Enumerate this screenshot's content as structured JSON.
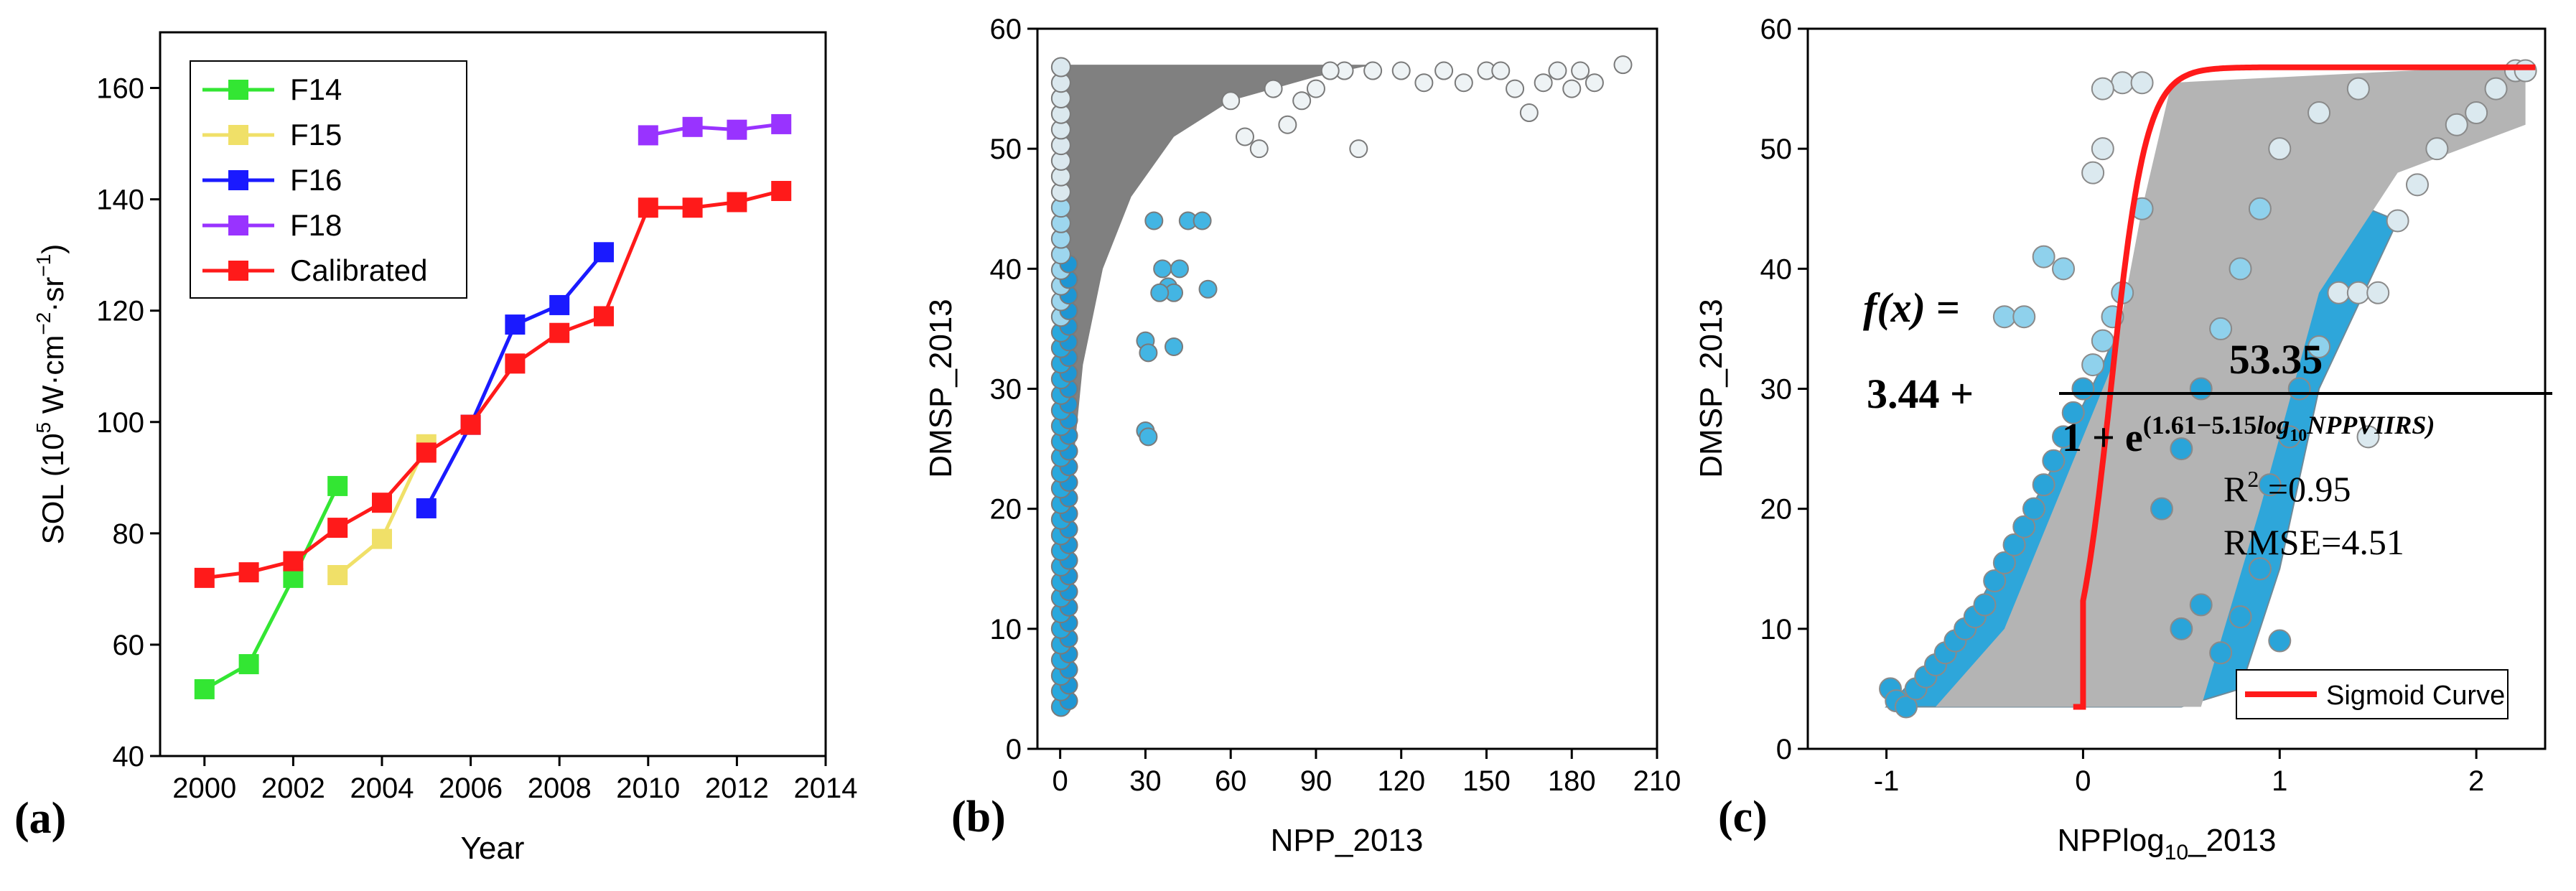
{
  "chart_data": [
    {
      "type": "line",
      "panel_label": "(a)",
      "xlabel": "Year",
      "ylabel_main": "SOL (10",
      "ylabel_sup1": "5",
      "ylabel_mid": " W·cm",
      "ylabel_sup2": "−2",
      "ylabel_mid2": "·sr",
      "ylabel_sup3": "−1",
      "ylabel_end": ")",
      "xlim": [
        1999,
        2014
      ],
      "ylim": [
        40,
        170
      ],
      "xticks": [
        2000,
        2002,
        2004,
        2006,
        2008,
        2010,
        2012,
        2014
      ],
      "yticks": [
        40,
        60,
        80,
        100,
        120,
        140,
        160
      ],
      "legend_position": "top-left",
      "series": [
        {
          "name": "F14",
          "color": "#33e633",
          "x": [
            2000,
            2001,
            2002,
            2003
          ],
          "y": [
            52,
            56.5,
            72,
            88.5
          ]
        },
        {
          "name": "F15",
          "color": "#f0e068",
          "x": [
            2003,
            2004,
            2005
          ],
          "y": [
            72.5,
            79,
            96
          ]
        },
        {
          "name": "F16",
          "color": "#1a1aff",
          "x": [
            2005,
            2006,
            2007,
            2008,
            2009
          ],
          "y": [
            84.5,
            99.5,
            117.5,
            121,
            130.5
          ]
        },
        {
          "name": "F18",
          "color": "#9933ff",
          "x": [
            2010,
            2011,
            2012,
            2013
          ],
          "y": [
            151.5,
            153,
            152.5,
            153.5
          ]
        },
        {
          "name": "Calibrated",
          "color": "#ff1a1a",
          "x": [
            2000,
            2001,
            2002,
            2003,
            2004,
            2005,
            2006,
            2007,
            2008,
            2009,
            2010,
            2011,
            2012,
            2013
          ],
          "y": [
            72,
            73,
            75,
            81,
            85.5,
            94.5,
            99.5,
            110.5,
            116,
            119,
            138.5,
            138.5,
            139.5,
            141.5
          ]
        }
      ]
    },
    {
      "type": "scatter",
      "panel_label": "(b)",
      "xlabel": "NPP_2013",
      "ylabel": "DMSP_2013",
      "xlim": [
        -8,
        210
      ],
      "ylim": [
        0,
        60
      ],
      "xticks": [
        0,
        30,
        60,
        90,
        120,
        150,
        180,
        210
      ],
      "yticks": [
        0,
        10,
        20,
        30,
        40,
        50,
        60
      ],
      "point_color_low": "#1e90d0",
      "point_color_high": "#dce9ef",
      "point_edge": "#808080",
      "sample_points": [
        [
          105,
          50
        ],
        [
          120,
          56.5
        ],
        [
          135,
          56.5
        ],
        [
          150,
          56.5
        ],
        [
          160,
          55
        ],
        [
          165,
          53
        ],
        [
          170,
          55.5
        ],
        [
          175,
          56.5
        ],
        [
          180,
          55
        ],
        [
          183,
          56.5
        ],
        [
          188,
          55.5
        ],
        [
          198,
          57
        ],
        [
          100,
          56.5
        ],
        [
          110,
          56.5
        ],
        [
          128,
          55.5
        ],
        [
          142,
          55.5
        ],
        [
          155,
          56.5
        ],
        [
          60,
          54
        ],
        [
          65,
          51
        ],
        [
          70,
          50
        ],
        [
          75,
          55
        ],
        [
          80,
          52
        ],
        [
          85,
          54
        ],
        [
          90,
          55
        ],
        [
          95,
          56.5
        ],
        [
          30,
          34
        ],
        [
          31,
          33
        ],
        [
          38,
          38.5
        ],
        [
          40,
          38
        ],
        [
          52,
          38.3
        ],
        [
          33,
          44
        ],
        [
          30,
          26.5
        ],
        [
          31,
          26
        ],
        [
          35,
          38
        ],
        [
          45,
          44
        ],
        [
          50,
          44
        ],
        [
          36,
          40
        ],
        [
          42,
          40
        ],
        [
          40,
          33.5
        ]
      ]
    },
    {
      "type": "scatter",
      "panel_label": "(c)",
      "xlabel_main": "NPPlog",
      "xlabel_sub": "10",
      "xlabel_end": "_2013",
      "ylabel": "DMSP_2013",
      "xlim": [
        -1.4,
        2.35
      ],
      "ylim": [
        0,
        60
      ],
      "xticks": [
        -1,
        0,
        1,
        2
      ],
      "yticks": [
        0,
        10,
        20,
        30,
        40,
        50,
        60
      ],
      "sigmoid": {
        "name": "Sigmoid Curve",
        "a": 3.44,
        "b": 53.35,
        "c": 1.61,
        "d": 5.15,
        "color": "#ff1a1a"
      },
      "legend_position": "bottom-right",
      "equation": {
        "lhs": "f(x) =",
        "const": "3.44 +",
        "numerator": "53.35",
        "denom_base": "1 + e",
        "denom_exp_a": "(1.61−5.15",
        "denom_exp_log": "log",
        "denom_exp_sub": "10",
        "denom_exp_var": "NPPVIIRS)",
        "r2_label": "R",
        "r2_sup": "2",
        "r2_value": " =0.95",
        "rmse": "RMSE=4.51"
      },
      "sample_points": [
        [
          -0.98,
          5
        ],
        [
          -0.95,
          4
        ],
        [
          -0.9,
          3.5
        ],
        [
          -0.85,
          5
        ],
        [
          -0.8,
          6
        ],
        [
          -0.75,
          7
        ],
        [
          -0.7,
          8
        ],
        [
          -0.65,
          9
        ],
        [
          -0.6,
          10
        ],
        [
          -0.55,
          11
        ],
        [
          -0.5,
          12
        ],
        [
          -0.45,
          14
        ],
        [
          -0.4,
          15.5
        ],
        [
          -0.35,
          17
        ],
        [
          -0.3,
          18.5
        ],
        [
          -0.25,
          20
        ],
        [
          -0.2,
          22
        ],
        [
          -0.15,
          24
        ],
        [
          -0.1,
          26
        ],
        [
          -0.05,
          28
        ],
        [
          0.0,
          30
        ],
        [
          0.05,
          32
        ],
        [
          0.1,
          34
        ],
        [
          0.15,
          36
        ],
        [
          0.2,
          38
        ],
        [
          -0.4,
          36
        ],
        [
          -0.3,
          36
        ],
        [
          -0.2,
          41
        ],
        [
          -0.1,
          40
        ],
        [
          0.05,
          48
        ],
        [
          0.1,
          50
        ],
        [
          0.2,
          55.5
        ],
        [
          0.3,
          55.5
        ],
        [
          1.0,
          9
        ],
        [
          0.9,
          15
        ],
        [
          0.95,
          22
        ],
        [
          1.05,
          26
        ],
        [
          1.1,
          30
        ],
        [
          1.2,
          33.5
        ],
        [
          1.3,
          38
        ],
        [
          1.4,
          38
        ],
        [
          1.5,
          38
        ],
        [
          1.45,
          26
        ],
        [
          1.6,
          44
        ],
        [
          1.7,
          47
        ],
        [
          1.8,
          50
        ],
        [
          1.9,
          52
        ],
        [
          2.0,
          53
        ],
        [
          2.1,
          55
        ],
        [
          2.2,
          56.5
        ],
        [
          2.25,
          56.5
        ],
        [
          0.5,
          10
        ],
        [
          0.6,
          12
        ],
        [
          0.7,
          8
        ],
        [
          0.8,
          11
        ],
        [
          0.4,
          20
        ],
        [
          0.5,
          25
        ],
        [
          0.6,
          30
        ],
        [
          0.7,
          35
        ],
        [
          0.8,
          40
        ],
        [
          0.9,
          45
        ],
        [
          1.0,
          50
        ],
        [
          1.2,
          53
        ],
        [
          1.4,
          55
        ],
        [
          0.3,
          45
        ],
        [
          0.1,
          55
        ]
      ]
    }
  ]
}
